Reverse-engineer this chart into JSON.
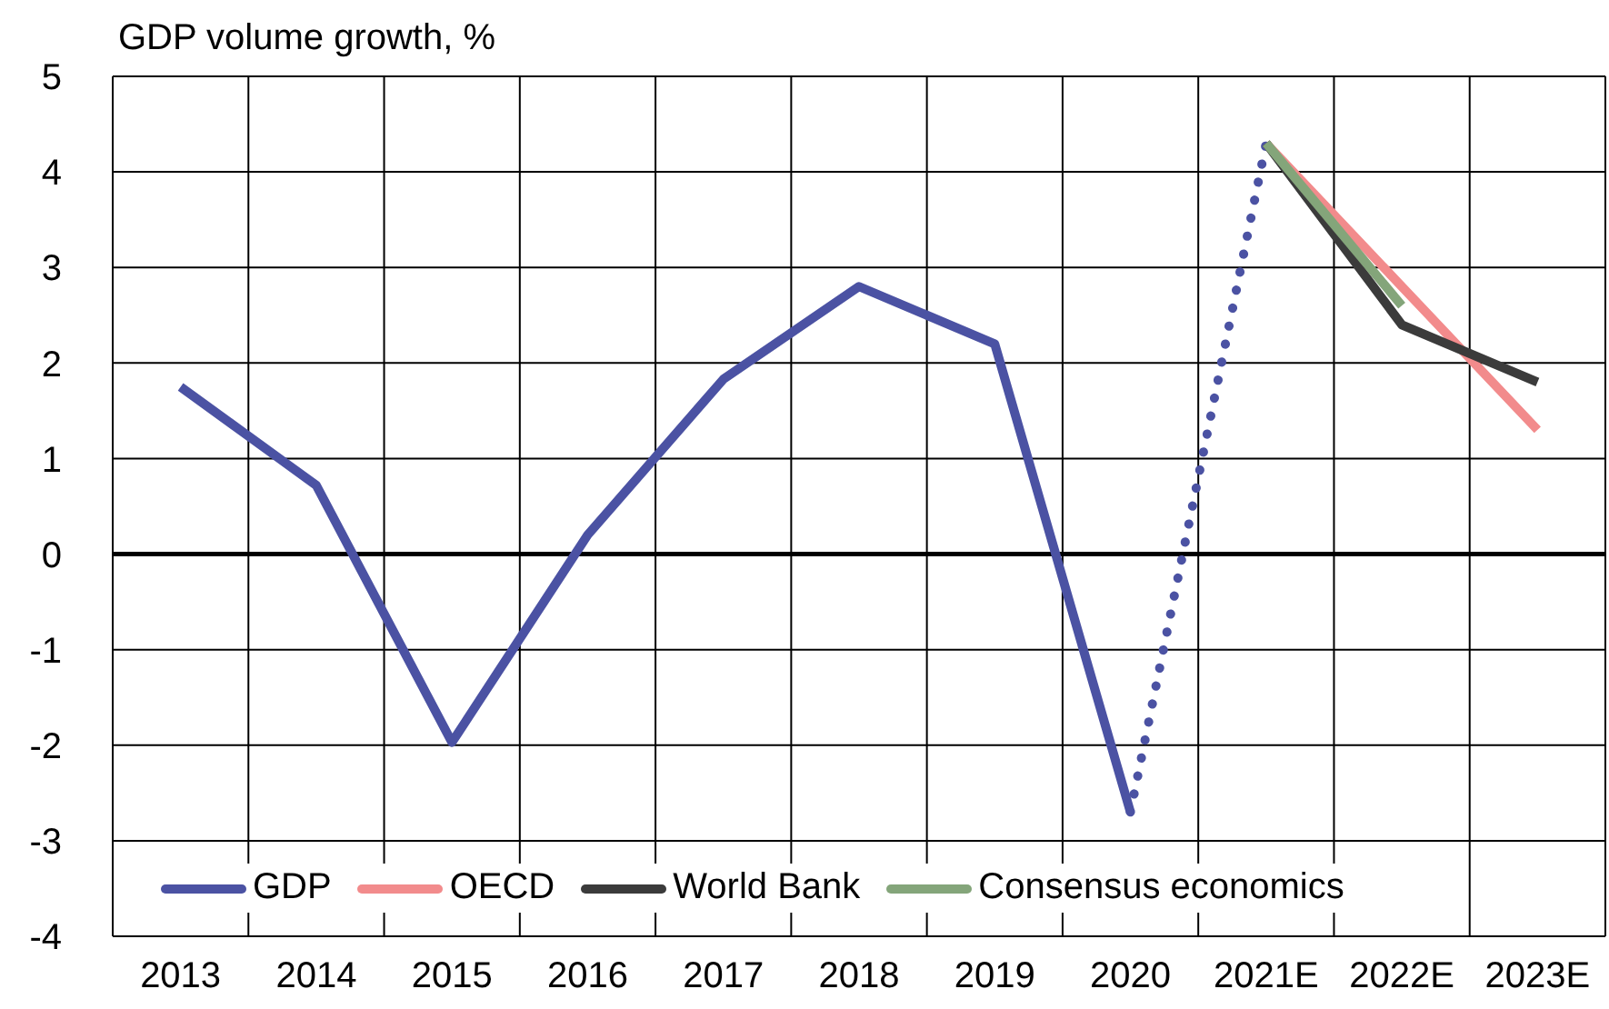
{
  "chart_data": {
    "type": "line",
    "title": "GDP volume growth, %",
    "categories": [
      "2013",
      "2014",
      "2015",
      "2016",
      "2017",
      "2018",
      "2019",
      "2020",
      "2021E",
      "2022E",
      "2023E"
    ],
    "series": [
      {
        "name": "GDP",
        "color": "#4b52a3",
        "values": [
          1.75,
          0.72,
          -1.97,
          0.2,
          1.83,
          2.8,
          2.2,
          -2.7,
          null,
          null,
          null
        ]
      },
      {
        "color": "#4b52a3",
        "line_style": "dotted",
        "values": [
          null,
          null,
          null,
          null,
          null,
          null,
          null,
          -2.7,
          4.3,
          null,
          null
        ]
      },
      {
        "name": "OECD",
        "color": "#f28b8c",
        "values": [
          null,
          null,
          null,
          null,
          null,
          null,
          null,
          null,
          4.3,
          2.8,
          1.3
        ]
      },
      {
        "name": "World Bank",
        "color": "#3b3b3b",
        "values": [
          null,
          null,
          null,
          null,
          null,
          null,
          null,
          null,
          4.3,
          2.4,
          1.8
        ]
      },
      {
        "name": "Consensus economics",
        "color": "#84a57a",
        "values": [
          null,
          null,
          null,
          null,
          null,
          null,
          null,
          null,
          4.3,
          2.6,
          null
        ]
      }
    ],
    "ylim": [
      -4,
      5
    ],
    "yticks": [
      -4,
      -3,
      -2,
      -1,
      0,
      1,
      2,
      3,
      4,
      5
    ],
    "ref_lines": [
      {
        "axis": "y",
        "value": 0,
        "color": "#000000"
      }
    ],
    "grid": true,
    "legend": "bottom",
    "line_style": "solid",
    "marker": "none"
  }
}
